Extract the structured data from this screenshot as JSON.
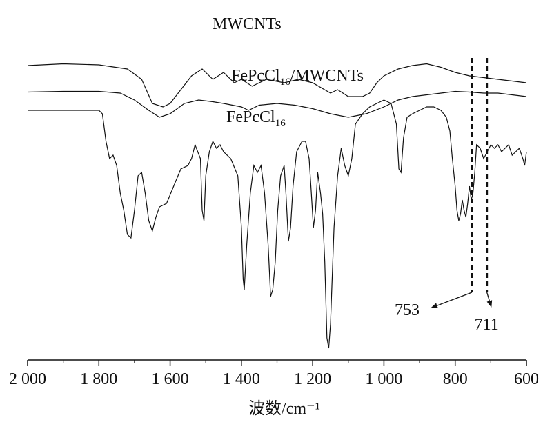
{
  "chart_data": {
    "type": "line",
    "xlabel": "波数/cm⁻¹",
    "ylabel": "",
    "xlim": [
      2000,
      600
    ],
    "x_reversed": true,
    "x_ticks": [
      {
        "value": 2000,
        "label": "2 000"
      },
      {
        "value": 1800,
        "label": "1 800"
      },
      {
        "value": 1600,
        "label": "1 600"
      },
      {
        "value": 1400,
        "label": "1 400"
      },
      {
        "value": 1200,
        "label": "1 200"
      },
      {
        "value": 1000,
        "label": "1 000"
      },
      {
        "value": 800,
        "label": "800"
      },
      {
        "value": 600,
        "label": "600"
      }
    ],
    "y_axis_visible": false,
    "grid": false,
    "series": [
      {
        "name": "MWCNTs",
        "label_parts": {
          "main": "MWCNTs",
          "sub": "",
          "tail": ""
        },
        "points": [
          [
            2000,
            0.87
          ],
          [
            1900,
            0.875
          ],
          [
            1800,
            0.872
          ],
          [
            1720,
            0.86
          ],
          [
            1680,
            0.83
          ],
          [
            1650,
            0.76
          ],
          [
            1620,
            0.75
          ],
          [
            1600,
            0.76
          ],
          [
            1570,
            0.8
          ],
          [
            1540,
            0.84
          ],
          [
            1510,
            0.86
          ],
          [
            1480,
            0.83
          ],
          [
            1450,
            0.85
          ],
          [
            1420,
            0.82
          ],
          [
            1400,
            0.83
          ],
          [
            1370,
            0.81
          ],
          [
            1330,
            0.83
          ],
          [
            1280,
            0.82
          ],
          [
            1240,
            0.83
          ],
          [
            1200,
            0.82
          ],
          [
            1150,
            0.79
          ],
          [
            1130,
            0.8
          ],
          [
            1100,
            0.78
          ],
          [
            1060,
            0.78
          ],
          [
            1040,
            0.79
          ],
          [
            1020,
            0.82
          ],
          [
            1000,
            0.84
          ],
          [
            960,
            0.86
          ],
          [
            920,
            0.87
          ],
          [
            880,
            0.875
          ],
          [
            840,
            0.865
          ],
          [
            800,
            0.85
          ],
          [
            760,
            0.84
          ],
          [
            720,
            0.835
          ],
          [
            680,
            0.83
          ],
          [
            640,
            0.825
          ],
          [
            600,
            0.82
          ]
        ]
      },
      {
        "name": "FePcCl16/MWCNTs",
        "label_parts": {
          "main": "FePcCl",
          "sub": "16",
          "tail": "/MWCNTs"
        },
        "points": [
          [
            2000,
            0.793
          ],
          [
            1900,
            0.795
          ],
          [
            1800,
            0.795
          ],
          [
            1740,
            0.79
          ],
          [
            1700,
            0.77
          ],
          [
            1660,
            0.74
          ],
          [
            1630,
            0.72
          ],
          [
            1600,
            0.73
          ],
          [
            1560,
            0.76
          ],
          [
            1520,
            0.77
          ],
          [
            1480,
            0.765
          ],
          [
            1450,
            0.76
          ],
          [
            1400,
            0.75
          ],
          [
            1380,
            0.74
          ],
          [
            1350,
            0.755
          ],
          [
            1300,
            0.76
          ],
          [
            1250,
            0.755
          ],
          [
            1200,
            0.745
          ],
          [
            1150,
            0.73
          ],
          [
            1100,
            0.72
          ],
          [
            1050,
            0.73
          ],
          [
            1000,
            0.75
          ],
          [
            960,
            0.77
          ],
          [
            920,
            0.78
          ],
          [
            880,
            0.785
          ],
          [
            840,
            0.79
          ],
          [
            800,
            0.795
          ],
          [
            760,
            0.793
          ],
          [
            720,
            0.79
          ],
          [
            680,
            0.79
          ],
          [
            640,
            0.785
          ],
          [
            600,
            0.78
          ]
        ]
      },
      {
        "name": "FePcCl16",
        "label_parts": {
          "main": "FePcCl",
          "sub": "16",
          "tail": ""
        },
        "points": [
          [
            2000,
            0.74
          ],
          [
            1900,
            0.74
          ],
          [
            1800,
            0.74
          ],
          [
            1790,
            0.73
          ],
          [
            1780,
            0.65
          ],
          [
            1770,
            0.6
          ],
          [
            1760,
            0.61
          ],
          [
            1750,
            0.58
          ],
          [
            1740,
            0.5
          ],
          [
            1730,
            0.45
          ],
          [
            1720,
            0.38
          ],
          [
            1710,
            0.37
          ],
          [
            1700,
            0.45
          ],
          [
            1690,
            0.55
          ],
          [
            1680,
            0.56
          ],
          [
            1670,
            0.5
          ],
          [
            1660,
            0.42
          ],
          [
            1650,
            0.39
          ],
          [
            1640,
            0.43
          ],
          [
            1630,
            0.46
          ],
          [
            1610,
            0.47
          ],
          [
            1590,
            0.52
          ],
          [
            1570,
            0.57
          ],
          [
            1550,
            0.58
          ],
          [
            1540,
            0.6
          ],
          [
            1530,
            0.64
          ],
          [
            1515,
            0.6
          ],
          [
            1510,
            0.45
          ],
          [
            1505,
            0.42
          ],
          [
            1500,
            0.55
          ],
          [
            1490,
            0.62
          ],
          [
            1480,
            0.65
          ],
          [
            1470,
            0.63
          ],
          [
            1460,
            0.64
          ],
          [
            1450,
            0.62
          ],
          [
            1430,
            0.6
          ],
          [
            1410,
            0.55
          ],
          [
            1400,
            0.4
          ],
          [
            1395,
            0.25
          ],
          [
            1392,
            0.22
          ],
          [
            1385,
            0.35
          ],
          [
            1375,
            0.5
          ],
          [
            1365,
            0.58
          ],
          [
            1355,
            0.56
          ],
          [
            1345,
            0.58
          ],
          [
            1335,
            0.5
          ],
          [
            1325,
            0.35
          ],
          [
            1318,
            0.2
          ],
          [
            1312,
            0.22
          ],
          [
            1305,
            0.3
          ],
          [
            1298,
            0.45
          ],
          [
            1290,
            0.55
          ],
          [
            1280,
            0.58
          ],
          [
            1275,
            0.5
          ],
          [
            1268,
            0.36
          ],
          [
            1262,
            0.4
          ],
          [
            1255,
            0.52
          ],
          [
            1245,
            0.62
          ],
          [
            1230,
            0.65
          ],
          [
            1220,
            0.65
          ],
          [
            1210,
            0.6
          ],
          [
            1205,
            0.52
          ],
          [
            1198,
            0.4
          ],
          [
            1192,
            0.45
          ],
          [
            1186,
            0.56
          ],
          [
            1178,
            0.5
          ],
          [
            1172,
            0.44
          ],
          [
            1166,
            0.3
          ],
          [
            1160,
            0.08
          ],
          [
            1155,
            0.05
          ],
          [
            1150,
            0.12
          ],
          [
            1140,
            0.4
          ],
          [
            1130,
            0.55
          ],
          [
            1120,
            0.63
          ],
          [
            1110,
            0.58
          ],
          [
            1100,
            0.55
          ],
          [
            1090,
            0.6
          ],
          [
            1080,
            0.7
          ],
          [
            1060,
            0.73
          ],
          [
            1040,
            0.75
          ],
          [
            1020,
            0.76
          ],
          [
            1000,
            0.77
          ],
          [
            980,
            0.76
          ],
          [
            965,
            0.7
          ],
          [
            958,
            0.57
          ],
          [
            952,
            0.56
          ],
          [
            945,
            0.66
          ],
          [
            935,
            0.72
          ],
          [
            920,
            0.73
          ],
          [
            900,
            0.74
          ],
          [
            880,
            0.75
          ],
          [
            860,
            0.75
          ],
          [
            840,
            0.74
          ],
          [
            825,
            0.72
          ],
          [
            815,
            0.68
          ],
          [
            808,
            0.6
          ],
          [
            800,
            0.52
          ],
          [
            795,
            0.45
          ],
          [
            790,
            0.42
          ],
          [
            785,
            0.44
          ],
          [
            780,
            0.48
          ],
          [
            775,
            0.45
          ],
          [
            770,
            0.43
          ],
          [
            765,
            0.47
          ],
          [
            760,
            0.52
          ],
          [
            755,
            0.48
          ],
          [
            750,
            0.5
          ],
          [
            745,
            0.56
          ],
          [
            740,
            0.64
          ],
          [
            730,
            0.63
          ],
          [
            720,
            0.6
          ],
          [
            710,
            0.62
          ],
          [
            700,
            0.64
          ],
          [
            690,
            0.63
          ],
          [
            680,
            0.64
          ],
          [
            670,
            0.62
          ],
          [
            660,
            0.63
          ],
          [
            650,
            0.64
          ],
          [
            640,
            0.61
          ],
          [
            630,
            0.62
          ],
          [
            620,
            0.63
          ],
          [
            610,
            0.6
          ],
          [
            605,
            0.58
          ],
          [
            600,
            0.62
          ]
        ]
      }
    ],
    "reference_lines": [
      {
        "x": 753,
        "label": "753"
      },
      {
        "x": 711,
        "label": "711"
      }
    ]
  }
}
